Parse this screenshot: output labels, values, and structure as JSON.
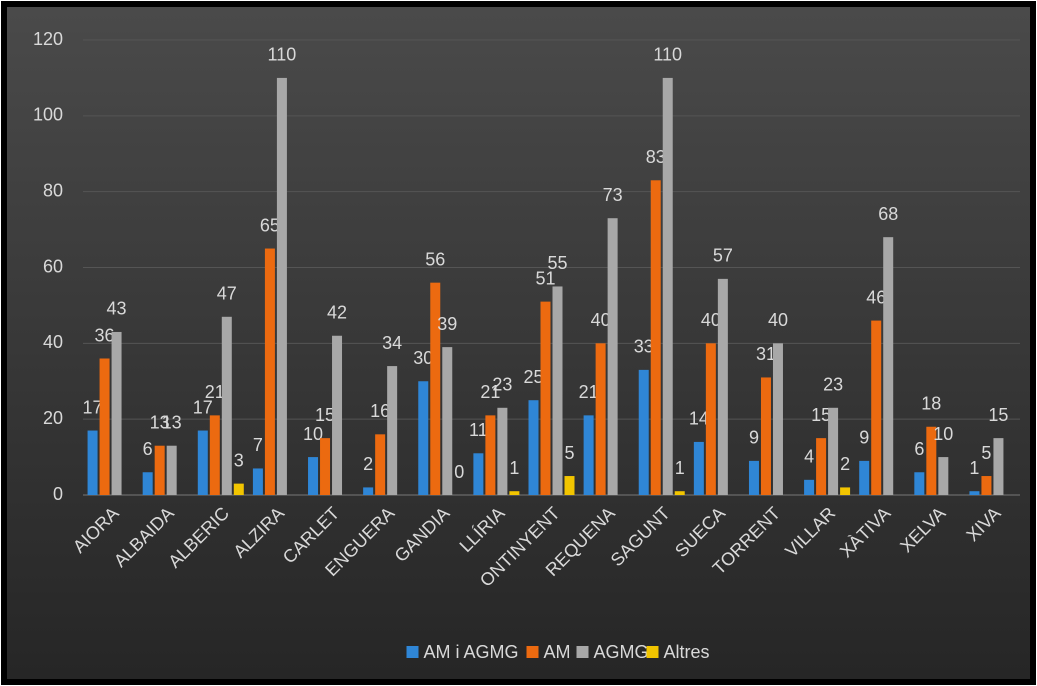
{
  "chart_data": {
    "type": "bar",
    "categories": [
      "AIORA",
      "ALBAIDA",
      "ALBERIC",
      "ALZIRA",
      "CARLET",
      "ENGUERA",
      "GANDIA",
      "LLÍRIA",
      "ONTINYENT",
      "REQUENA",
      "SAGUNT",
      "SUECA",
      "TORRENT",
      "VILLAR",
      "XÀTIVA",
      "XELVA",
      "XIVA"
    ],
    "series": [
      {
        "name": "AM i AGMG",
        "color": "#2f86d6",
        "values": [
          17,
          6,
          17,
          7,
          10,
          2,
          30,
          11,
          25,
          21,
          33,
          14,
          9,
          4,
          9,
          6,
          1
        ]
      },
      {
        "name": "AM",
        "color": "#ec6a10",
        "values": [
          36,
          13,
          21,
          65,
          15,
          16,
          56,
          21,
          51,
          40,
          83,
          40,
          31,
          15,
          46,
          18,
          5
        ]
      },
      {
        "name": "AGMG",
        "color": "#a8a8a8",
        "values": [
          43,
          13,
          47,
          110,
          42,
          34,
          39,
          23,
          55,
          73,
          110,
          57,
          40,
          23,
          68,
          10,
          15
        ]
      },
      {
        "name": "Altres",
        "color": "#f2c500",
        "values": [
          null,
          null,
          3,
          null,
          null,
          null,
          0,
          1,
          5,
          null,
          1,
          null,
          null,
          2,
          null,
          null,
          null
        ]
      }
    ],
    "ylim": [
      0,
      120
    ],
    "yticks": [
      0,
      20,
      40,
      60,
      80,
      100,
      120
    ],
    "grid": true,
    "legend": "bottom"
  }
}
